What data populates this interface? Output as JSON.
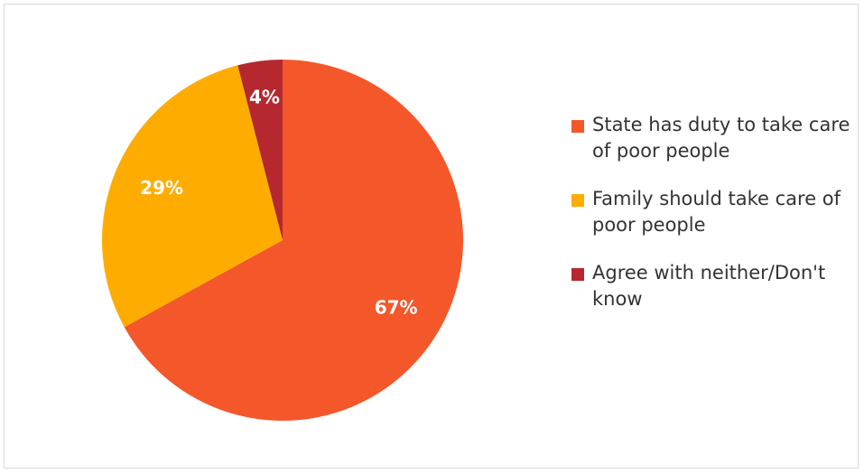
{
  "chart_data": {
    "type": "pie",
    "title": "",
    "categories": [
      "State has duty to take care of poor people",
      "Family should take care of poor people",
      "Agree with neither/Don't know"
    ],
    "values": [
      67,
      29,
      4
    ],
    "data_labels": [
      "67%",
      "29%",
      "4%"
    ],
    "colors": [
      "#F4572A",
      "#FFAC00",
      "#B52830"
    ],
    "legend": {
      "position": "right",
      "items": [
        {
          "label": "State has duty to take care of poor people",
          "color": "#F4572A"
        },
        {
          "label": "Family should take care of poor people",
          "color": "#FFAC00"
        },
        {
          "label": "Agree with neither/Don't know",
          "color": "#B52830"
        }
      ]
    }
  }
}
